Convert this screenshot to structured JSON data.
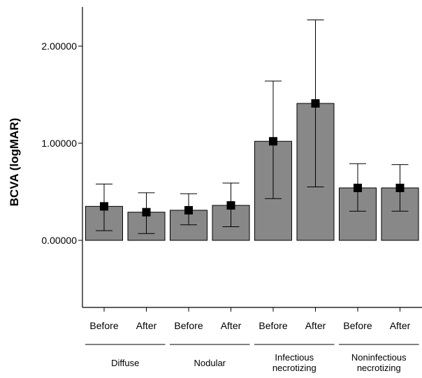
{
  "chart_data": {
    "type": "bar",
    "ylabel": "BCVA (logMAR)",
    "ylim": [
      -0.7,
      2.4
    ],
    "yticks": [
      {
        "value": 0,
        "label": "0.00000"
      },
      {
        "value": 1,
        "label": "1.00000"
      },
      {
        "value": 2,
        "label": "2.00000"
      }
    ],
    "categories": [
      "Before",
      "After",
      "Before",
      "After",
      "Before",
      "After",
      "Before",
      "After"
    ],
    "groups": [
      {
        "label_lines": [
          "Diffuse"
        ],
        "members": [
          0,
          1
        ]
      },
      {
        "label_lines": [
          "Nodular"
        ],
        "members": [
          2,
          3
        ]
      },
      {
        "label_lines": [
          "Infectious",
          "necrotizing"
        ],
        "members": [
          4,
          5
        ]
      },
      {
        "label_lines": [
          "Noninfectious",
          "necrotizing"
        ],
        "members": [
          6,
          7
        ]
      }
    ],
    "values": [
      0.35,
      0.29,
      0.31,
      0.36,
      1.02,
      1.41,
      0.54,
      0.54
    ],
    "error_low": [
      0.1,
      0.07,
      0.16,
      0.14,
      0.43,
      0.55,
      0.3,
      0.3
    ],
    "error_high": [
      0.58,
      0.49,
      0.48,
      0.59,
      1.64,
      2.27,
      0.79,
      0.78
    ],
    "colors": {
      "bar_fill": "#888888",
      "bar_stroke": "#000000",
      "marker": "#000000"
    },
    "grid": false,
    "legend": "none"
  }
}
